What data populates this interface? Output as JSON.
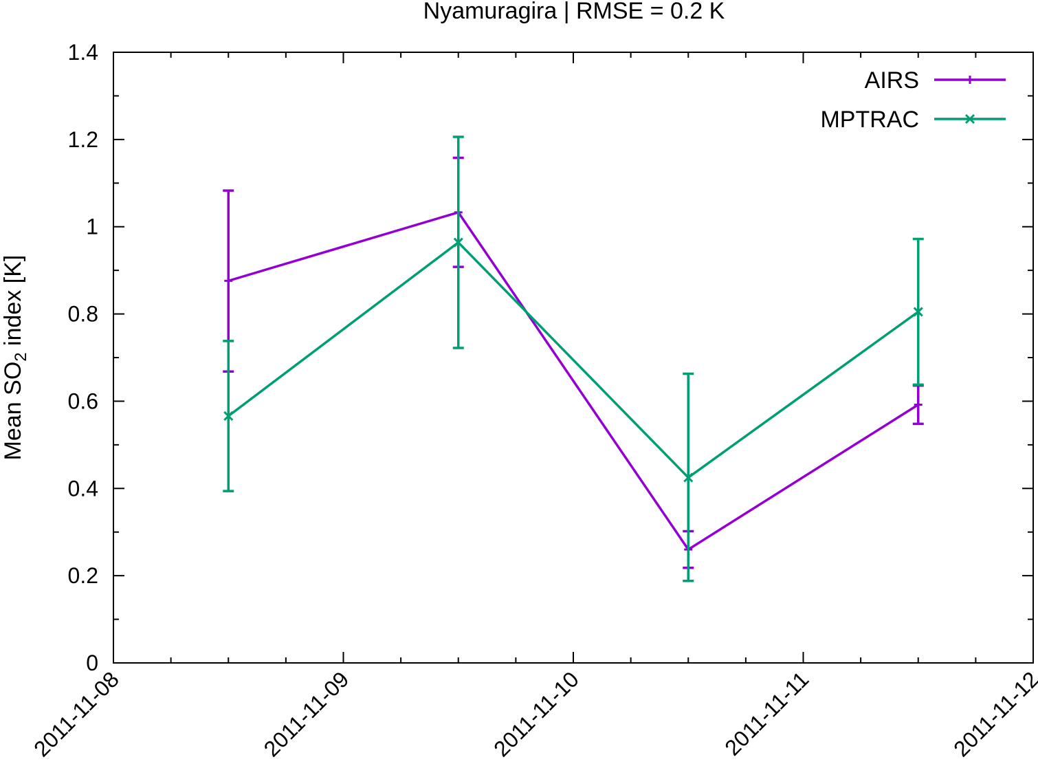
{
  "chart_data": {
    "type": "line",
    "title": "Nyamuragira | RMSE = 0.2 K",
    "ylabel_main": "Mean SO",
    "ylabel_sub": "2",
    "ylabel_rest": " index [K]",
    "xlabel": "",
    "ylim": [
      0,
      1.4
    ],
    "xlim": [
      "2011-11-08",
      "2011-11-12"
    ],
    "x_ticks": [
      "2011-11-08",
      "2011-11-09",
      "2011-11-10",
      "2011-11-11",
      "2011-11-12"
    ],
    "y_ticks": [
      "0",
      "0.2",
      "0.4",
      "0.6",
      "0.8",
      "1",
      "1.2",
      "1.4"
    ],
    "grid": false,
    "legend_position": "top-right",
    "series": [
      {
        "name": "AIRS",
        "color": "#9400d3",
        "marker": "plus",
        "x": [
          "2011-11-08 12:00",
          "2011-11-09 12:00",
          "2011-11-10 12:00",
          "2011-11-11 12:00"
        ],
        "y": [
          0.876,
          1.033,
          0.26,
          0.592
        ],
        "y_low": [
          0.668,
          0.908,
          0.218,
          0.548
        ],
        "y_high": [
          1.083,
          1.158,
          0.302,
          0.636
        ]
      },
      {
        "name": "MPTRAC",
        "color": "#009e73",
        "marker": "cross",
        "x": [
          "2011-11-08 12:00",
          "2011-11-09 12:00",
          "2011-11-10 12:00",
          "2011-11-11 12:00"
        ],
        "y": [
          0.566,
          0.964,
          0.425,
          0.805
        ],
        "y_low": [
          0.394,
          0.722,
          0.188,
          0.638
        ],
        "y_high": [
          0.738,
          1.206,
          0.663,
          0.972
        ]
      }
    ]
  }
}
